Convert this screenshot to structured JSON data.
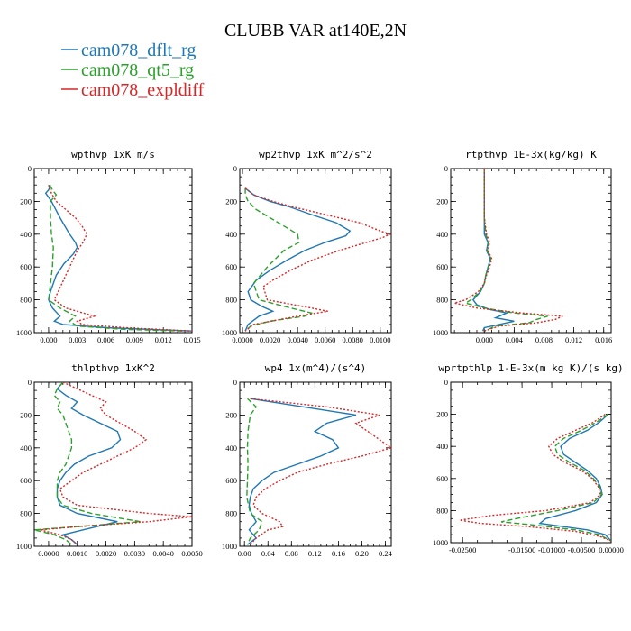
{
  "figure_title": "CLUBB VAR at140E,2N",
  "legend": [
    {
      "label": "cam078_dflt_rg",
      "color": "#1f77b4"
    },
    {
      "label": "cam078_qt5_rg",
      "color": "#2ca02c"
    },
    {
      "label": "cam078_expldiff",
      "color": "#d62728"
    }
  ],
  "chart_data": [
    {
      "type": "line",
      "title": "wpthvp  1xK m/s",
      "xlim": [
        -0.0015,
        0.015
      ],
      "ylim": [
        1000,
        0
      ],
      "xticks": [
        "0.000",
        "0.003",
        "0.006",
        "0.009",
        "0.012",
        "0.015"
      ],
      "xtick_values": [
        0,
        0.003,
        0.006,
        0.009,
        0.012,
        0.015
      ],
      "yticks": [
        "0",
        "200",
        "400",
        "600",
        "800",
        "1000"
      ],
      "ytick_values": [
        0,
        200,
        400,
        600,
        800,
        1000
      ],
      "series": [
        {
          "name": "cam078_dflt_rg",
          "y": [
            100,
            130,
            150,
            200,
            300,
            400,
            450,
            480,
            520,
            580,
            650,
            750,
            800,
            850,
            900,
            930,
            950,
            970,
            990
          ],
          "x": [
            0.0002,
            0.0,
            -0.0003,
            0.0003,
            0.0012,
            0.0022,
            0.0028,
            0.003,
            0.0026,
            0.0016,
            0.0008,
            0.0002,
            0.0,
            0.0004,
            0.0012,
            0.0006,
            0.0015,
            0.006,
            0.015
          ]
        },
        {
          "name": "cam078_qt5_rg",
          "y": [
            100,
            130,
            160,
            200,
            300,
            400,
            480,
            600,
            700,
            800,
            850,
            900,
            930,
            960,
            980,
            990
          ],
          "x": [
            0.0001,
            0.0004,
            0.0008,
            0.0002,
            0.0002,
            0.0003,
            0.0005,
            0.0004,
            0.0002,
            0.0,
            0.0012,
            0.0028,
            0.0022,
            0.003,
            0.008,
            0.014
          ]
        },
        {
          "name": "cam078_expldiff",
          "y": [
            100,
            150,
            200,
            250,
            300,
            350,
            400,
            450,
            500,
            600,
            700,
            800,
            850,
            900,
            930,
            950,
            970,
            990
          ],
          "x": [
            0.0,
            0.0003,
            0.0008,
            0.0018,
            0.0028,
            0.0035,
            0.004,
            0.0036,
            0.003,
            0.0022,
            0.0014,
            0.0006,
            0.0018,
            0.0048,
            0.003,
            0.0035,
            0.008,
            0.015
          ]
        }
      ]
    },
    {
      "type": "line",
      "title": "wp2thvp  1xK m^2/s^2",
      "xlim": [
        -0.0002,
        0.0108
      ],
      "ylim": [
        1000,
        0
      ],
      "xticks": [
        "0.0000",
        "0.0020",
        "0.0040",
        "0.0060",
        "0.0080",
        "0.0100"
      ],
      "xtick_values": [
        0,
        0.002,
        0.004,
        0.006,
        0.008,
        0.01
      ],
      "yticks": [
        "0",
        "200",
        "400",
        "600",
        "800",
        "1000"
      ],
      "ytick_values": [
        0,
        200,
        400,
        600,
        800,
        1000
      ],
      "series": [
        {
          "name": "cam078_dflt_rg",
          "y": [
            120,
            160,
            200,
            230,
            280,
            330,
            380,
            410,
            450,
            500,
            560,
            620,
            680,
            750,
            800,
            840,
            870,
            900,
            950,
            990
          ],
          "x": [
            0.0002,
            0.0008,
            0.002,
            0.0033,
            0.005,
            0.0068,
            0.0078,
            0.0075,
            0.006,
            0.0045,
            0.0032,
            0.002,
            0.001,
            0.0004,
            0.0006,
            0.0014,
            0.0022,
            0.0012,
            0.0004,
            0.0002
          ]
        },
        {
          "name": "cam078_qt5_rg",
          "y": [
            120,
            160,
            200,
            250,
            300,
            350,
            400,
            450,
            500,
            600,
            700,
            800,
            850,
            880,
            900,
            930,
            960,
            990
          ],
          "x": [
            0.0002,
            0.0002,
            0.0004,
            0.001,
            0.002,
            0.003,
            0.004,
            0.0041,
            0.003,
            0.0018,
            0.0008,
            0.0012,
            0.0035,
            0.005,
            0.0045,
            0.002,
            0.0006,
            0.0002
          ]
        },
        {
          "name": "cam078_expldiff",
          "y": [
            120,
            160,
            200,
            230,
            280,
            330,
            380,
            400,
            420,
            450,
            500,
            560,
            620,
            680,
            720,
            800,
            850,
            870,
            900,
            950,
            990
          ],
          "x": [
            0.0002,
            0.0008,
            0.0022,
            0.0035,
            0.006,
            0.0085,
            0.01,
            0.0107,
            0.0102,
            0.009,
            0.007,
            0.005,
            0.0035,
            0.0022,
            0.0015,
            0.0018,
            0.005,
            0.0062,
            0.004,
            0.0008,
            0.0002
          ]
        }
      ]
    },
    {
      "type": "line",
      "title": "rtpthvp  1E-3x(kg/kg) K",
      "xlim": [
        -0.0045,
        0.017
      ],
      "ylim": [
        1000,
        0
      ],
      "xticks": [
        "0.000",
        "0.004",
        "0.008",
        "0.012",
        "0.016"
      ],
      "xtick_values": [
        0,
        0.004,
        0.008,
        0.012,
        0.016
      ],
      "yticks": [
        "0",
        "200",
        "400",
        "600",
        "800",
        "1000"
      ],
      "ytick_values": [
        0,
        200,
        400,
        600,
        800,
        1000
      ],
      "series": [
        {
          "name": "cam078_dflt_rg",
          "y": [
            0,
            100,
            200,
            300,
            400,
            450,
            500,
            550,
            600,
            650,
            700,
            750,
            800,
            830,
            860,
            880,
            910,
            930,
            950,
            970,
            990
          ],
          "x": [
            0.0,
            0.0,
            0.0,
            0.0,
            0.0,
            0.0005,
            0.0003,
            0.0008,
            0.0005,
            0.0002,
            0.0,
            -0.0005,
            -0.0015,
            -0.001,
            0.0008,
            0.003,
            0.0015,
            0.004,
            0.002,
            0.0,
            -0.0002
          ]
        },
        {
          "name": "cam078_qt5_rg",
          "y": [
            0,
            100,
            200,
            300,
            400,
            450,
            500,
            550,
            600,
            650,
            700,
            750,
            800,
            820,
            850,
            880,
            900,
            920,
            940,
            960,
            990
          ],
          "x": [
            0.0,
            0.0,
            0.0,
            0.0,
            0.0002,
            0.0006,
            0.0004,
            0.0009,
            0.0006,
            0.0002,
            0.0,
            -0.0006,
            -0.0018,
            -0.0025,
            0.0,
            0.004,
            0.0085,
            0.007,
            0.006,
            0.0015,
            0.0
          ]
        },
        {
          "name": "cam078_expldiff",
          "y": [
            0,
            100,
            200,
            300,
            400,
            450,
            500,
            550,
            600,
            650,
            700,
            750,
            800,
            820,
            850,
            880,
            900,
            920,
            940,
            960,
            990
          ],
          "x": [
            0.0,
            0.0,
            0.0,
            0.0,
            0.0003,
            0.0007,
            0.0005,
            0.001,
            0.0007,
            0.0003,
            0.0,
            -0.0008,
            -0.0025,
            -0.004,
            -0.001,
            0.005,
            0.0105,
            0.0095,
            0.007,
            0.002,
            0.0
          ]
        }
      ]
    },
    {
      "type": "line",
      "title": "thlpthvp  1xK^2",
      "xlim": [
        -0.0005,
        0.005
      ],
      "ylim": [
        1000,
        0
      ],
      "xticks": [
        "0.0000",
        "0.0010",
        "0.0020",
        "0.0030",
        "0.0040",
        "0.0050"
      ],
      "xtick_values": [
        0,
        0.001,
        0.002,
        0.003,
        0.004,
        0.005
      ],
      "yticks": [
        "0",
        "200",
        "400",
        "600",
        "800",
        "1000"
      ],
      "ytick_values": [
        0,
        200,
        400,
        600,
        800,
        1000
      ],
      "series": [
        {
          "name": "cam078_dflt_rg",
          "y": [
            0,
            40,
            80,
            120,
            160,
            200,
            250,
            300,
            350,
            400,
            450,
            500,
            550,
            600,
            650,
            700,
            750,
            800,
            850,
            900,
            930,
            960,
            990
          ],
          "x": [
            0.0005,
            0.0003,
            0.0006,
            0.001,
            0.0008,
            0.0012,
            0.0018,
            0.0024,
            0.0025,
            0.0022,
            0.0014,
            0.0009,
            0.0006,
            0.0004,
            0.0003,
            0.0003,
            0.0004,
            0.001,
            0.0024,
            0.0012,
            0.0005,
            0.0008,
            0.001
          ]
        },
        {
          "name": "cam078_qt5_rg",
          "y": [
            0,
            40,
            80,
            120,
            160,
            200,
            250,
            300,
            350,
            400,
            450,
            500,
            550,
            600,
            650,
            700,
            750,
            800,
            850,
            880,
            900,
            930,
            960,
            990
          ],
          "x": [
            0.0005,
            0.0003,
            0.0002,
            0.0004,
            0.0003,
            0.0005,
            0.0006,
            0.0007,
            0.0008,
            0.0008,
            0.0007,
            0.0006,
            0.0004,
            0.0003,
            0.0003,
            0.0003,
            0.0005,
            0.0015,
            0.0032,
            0.001,
            -0.0005,
            0.0002,
            0.0006,
            0.0008
          ]
        },
        {
          "name": "cam078_expldiff",
          "y": [
            0,
            40,
            80,
            120,
            160,
            200,
            250,
            300,
            350,
            400,
            450,
            500,
            550,
            600,
            650,
            700,
            750,
            800,
            820,
            850,
            880,
            900,
            930,
            960,
            990
          ],
          "x": [
            0.0005,
            0.001,
            0.0015,
            0.002,
            0.0018,
            0.002,
            0.0025,
            0.003,
            0.0034,
            0.003,
            0.0024,
            0.0018,
            0.0012,
            0.0008,
            0.0004,
            0.0005,
            0.001,
            0.0035,
            0.005,
            0.0035,
            0.001,
            -0.0003,
            0.0004,
            0.0008,
            0.001
          ]
        }
      ]
    },
    {
      "type": "line",
      "title": "wp4  1x(m^4)/(s^4)",
      "xlim": [
        -0.008,
        0.25
      ],
      "ylim": [
        1000,
        0
      ],
      "xticks": [
        "0.00",
        "0.04",
        "0.08",
        "0.12",
        "0.16",
        "0.20",
        "0.24"
      ],
      "xtick_values": [
        0,
        0.04,
        0.08,
        0.12,
        0.16,
        0.2,
        0.24
      ],
      "yticks": [
        "0",
        "200",
        "400",
        "600",
        "800",
        "1000"
      ],
      "ytick_values": [
        0,
        200,
        400,
        600,
        800,
        1000
      ],
      "series": [
        {
          "name": "cam078_dflt_rg",
          "y": [
            100,
            150,
            200,
            250,
            300,
            350,
            400,
            450,
            500,
            550,
            600,
            650,
            700,
            750,
            800,
            850,
            900,
            950,
            990
          ],
          "x": [
            0.01,
            0.1,
            0.19,
            0.14,
            0.12,
            0.15,
            0.16,
            0.13,
            0.09,
            0.05,
            0.03,
            0.015,
            0.01,
            0.008,
            0.012,
            0.02,
            0.008,
            0.02,
            0.005
          ]
        },
        {
          "name": "cam078_qt5_rg",
          "y": [
            100,
            150,
            200,
            250,
            300,
            400,
            500,
            600,
            700,
            800,
            850,
            900,
            950,
            990
          ],
          "x": [
            0.005,
            0.02,
            0.01,
            0.008,
            0.006,
            0.005,
            0.006,
            0.005,
            0.004,
            0.01,
            0.03,
            0.025,
            0.01,
            0.005
          ]
        },
        {
          "name": "cam078_expldiff",
          "y": [
            100,
            150,
            200,
            250,
            300,
            350,
            400,
            450,
            500,
            550,
            600,
            650,
            700,
            750,
            800,
            850,
            880,
            900,
            950,
            990
          ],
          "x": [
            0.01,
            0.14,
            0.23,
            0.19,
            0.21,
            0.23,
            0.25,
            0.2,
            0.14,
            0.09,
            0.06,
            0.035,
            0.02,
            0.015,
            0.03,
            0.06,
            0.065,
            0.04,
            0.02,
            0.01
          ]
        }
      ]
    },
    {
      "type": "line",
      "title": "wprtpthlp  1-E-3x(m kg K)/(s kg)",
      "xlim": [
        -0.027,
        0.0
      ],
      "ylim": [
        1000,
        0
      ],
      "xticks": [
        "-0.02500",
        "-0.01500",
        "-0.01000",
        "-0.00500",
        "0.00000"
      ],
      "xtick_values": [
        -0.025,
        -0.015,
        -0.01,
        -0.005,
        0.0
      ],
      "yticks": [
        "0",
        "200",
        "400",
        "600",
        "800",
        "1000"
      ],
      "ytick_values": [
        0,
        200,
        400,
        600,
        800,
        1000
      ],
      "series": [
        {
          "name": "cam078_dflt_rg",
          "y": [
            200,
            250,
            300,
            350,
            400,
            450,
            500,
            550,
            600,
            650,
            700,
            750,
            800,
            850,
            880,
            900,
            920,
            950,
            990
          ],
          "x": [
            -0.0005,
            -0.002,
            -0.004,
            -0.007,
            -0.0085,
            -0.008,
            -0.006,
            -0.004,
            -0.0025,
            -0.0018,
            -0.0015,
            -0.0025,
            -0.006,
            -0.011,
            -0.012,
            -0.008,
            -0.004,
            -0.001,
            0.0
          ]
        },
        {
          "name": "cam078_qt5_rg",
          "y": [
            200,
            250,
            300,
            350,
            400,
            450,
            500,
            550,
            600,
            650,
            700,
            750,
            800,
            850,
            870,
            890,
            920,
            950,
            990
          ],
          "x": [
            -0.0005,
            -0.0025,
            -0.005,
            -0.008,
            -0.0095,
            -0.009,
            -0.007,
            -0.0045,
            -0.003,
            -0.002,
            -0.0016,
            -0.003,
            -0.009,
            -0.016,
            -0.0185,
            -0.013,
            -0.006,
            -0.002,
            0.0
          ]
        },
        {
          "name": "cam078_expldiff",
          "y": [
            200,
            250,
            300,
            350,
            400,
            450,
            500,
            550,
            600,
            650,
            700,
            750,
            800,
            830,
            860,
            880,
            900,
            930,
            960,
            990
          ],
          "x": [
            -0.001,
            -0.003,
            -0.006,
            -0.009,
            -0.0105,
            -0.0098,
            -0.0078,
            -0.005,
            -0.0032,
            -0.0022,
            -0.0018,
            -0.0035,
            -0.011,
            -0.02,
            -0.0255,
            -0.022,
            -0.014,
            -0.006,
            -0.002,
            0.0
          ]
        }
      ]
    }
  ]
}
